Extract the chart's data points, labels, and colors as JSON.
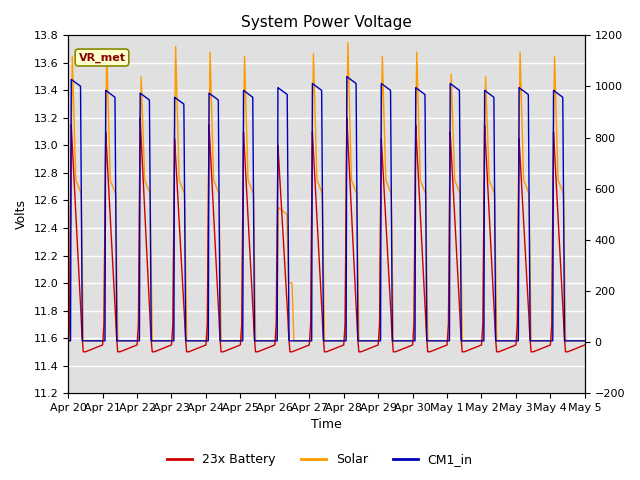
{
  "title": "System Power Voltage",
  "xlabel": "Time",
  "ylabel_left": "Volts",
  "ylim_left": [
    11.2,
    13.8
  ],
  "ylim_right": [
    -200,
    1200
  ],
  "yticks_left": [
    11.2,
    11.4,
    11.6,
    11.8,
    12.0,
    12.2,
    12.4,
    12.6,
    12.8,
    13.0,
    13.2,
    13.4,
    13.6,
    13.8
  ],
  "yticks_right": [
    -200,
    0,
    200,
    400,
    600,
    800,
    1000,
    1200
  ],
  "xtick_labels": [
    "Apr 20",
    "Apr 21",
    "Apr 22",
    "Apr 23",
    "Apr 24",
    "Apr 25",
    "Apr 26",
    "Apr 27",
    "Apr 28",
    "Apr 29",
    "Apr 30",
    "May 1",
    "May 2",
    "May 3",
    "May 4",
    "May 5"
  ],
  "annotation_text": "VR_met",
  "color_battery": "#cc0000",
  "color_solar": "#ff9900",
  "color_cm1": "#0000bb",
  "legend_labels": [
    "23x Battery",
    "Solar",
    "CM1_in"
  ],
  "bg_color": "#e0e0e0",
  "grid_color": "#ffffff",
  "title_fontsize": 11,
  "label_fontsize": 9,
  "tick_fontsize": 8
}
